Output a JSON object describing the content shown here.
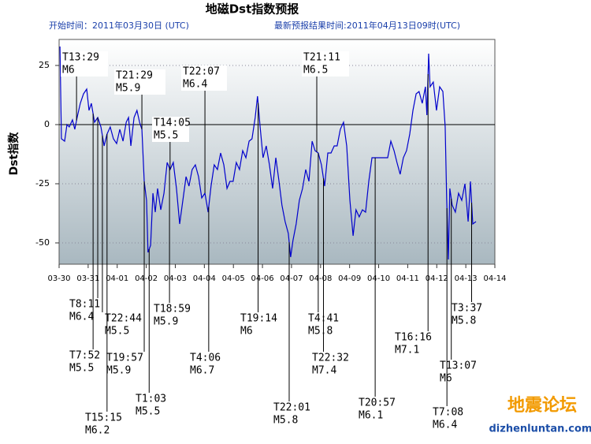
{
  "chart_data": {
    "type": "line",
    "title": "地磁Dst指数预报",
    "subtitle_left": "开始时间：2011年03月30日 (UTC)",
    "subtitle_right": "最新预报结果时间:2011年04月13日09时(UTC)",
    "y_label": "Dst指数",
    "watermark": "地震论坛",
    "watermark_url": "dizhenluntan.com",
    "color": "#0000cc",
    "grid": true,
    "xlim": [
      0,
      15
    ],
    "ylim": [
      -59,
      36
    ],
    "yticks": [
      -50,
      -25,
      0,
      25
    ],
    "xticks": [
      {
        "value": 0,
        "label": "03-30"
      },
      {
        "value": 1,
        "label": "03-31"
      },
      {
        "value": 2,
        "label": "04-01"
      },
      {
        "value": 3,
        "label": "04-02"
      },
      {
        "value": 4,
        "label": "04-03"
      },
      {
        "value": 5,
        "label": "04-04"
      },
      {
        "value": 6,
        "label": "04-05"
      },
      {
        "value": 7,
        "label": "04-06"
      },
      {
        "value": 8,
        "label": "04-07"
      },
      {
        "value": 9,
        "label": "04-08"
      },
      {
        "value": 10,
        "label": "04-09"
      },
      {
        "value": 11,
        "label": "04-10"
      },
      {
        "value": 12,
        "label": "04-11"
      },
      {
        "value": 13,
        "label": "04-12"
      },
      {
        "value": 14,
        "label": "04-13"
      },
      {
        "value": 15,
        "label": "04-14"
      }
    ],
    "x": [
      0.03,
      0.08,
      0.19,
      0.27,
      0.35,
      0.46,
      0.54,
      0.62,
      0.73,
      0.84,
      0.95,
      1.03,
      1.11,
      1.22,
      1.33,
      1.44,
      1.55,
      1.65,
      1.76,
      1.87,
      1.98,
      2.09,
      2.2,
      2.31,
      2.39,
      2.47,
      2.58,
      2.68,
      2.77,
      2.85,
      2.93,
      3.01,
      3.06,
      3.15,
      3.23,
      3.31,
      3.39,
      3.5,
      3.61,
      3.72,
      3.82,
      3.93,
      4.04,
      4.15,
      4.26,
      4.37,
      4.47,
      4.58,
      4.69,
      4.8,
      4.91,
      5.02,
      5.13,
      5.23,
      5.34,
      5.45,
      5.56,
      5.67,
      5.78,
      5.88,
      5.99,
      6.1,
      6.21,
      6.32,
      6.43,
      6.54,
      6.64,
      6.75,
      6.83,
      6.92,
      7.02,
      7.13,
      7.24,
      7.35,
      7.46,
      7.57,
      7.67,
      7.78,
      7.89,
      7.97,
      8.05,
      8.16,
      8.27,
      8.38,
      8.49,
      8.6,
      8.71,
      8.81,
      8.92,
      9.03,
      9.14,
      9.25,
      9.36,
      9.47,
      9.57,
      9.68,
      9.79,
      9.9,
      10.01,
      10.12,
      10.22,
      10.33,
      10.44,
      10.55,
      10.66,
      10.77,
      10.88,
      11.31,
      11.42,
      11.53,
      11.63,
      11.74,
      11.85,
      11.96,
      12.07,
      12.18,
      12.29,
      12.39,
      12.5,
      12.61,
      12.66,
      12.72,
      12.77,
      12.88,
      12.99,
      13.1,
      13.21,
      13.29,
      13.34,
      13.4,
      13.45,
      13.53,
      13.64,
      13.75,
      13.86,
      13.97,
      14.08,
      14.16,
      14.24,
      14.35
    ],
    "values": [
      33,
      -6,
      -7,
      0,
      -1,
      2,
      -2,
      3,
      9,
      13,
      15,
      6,
      9,
      1,
      3,
      -1,
      -9,
      -4,
      -1,
      -6,
      -8,
      -2,
      -7,
      1,
      3,
      -9,
      3,
      6,
      1,
      -2,
      -24,
      -32,
      -54,
      -51,
      -29,
      -37,
      -27,
      -36,
      -29,
      -16,
      -19,
      -16,
      -27,
      -42,
      -32,
      -22,
      -26,
      -19,
      -17,
      -22,
      -31,
      -29,
      -37,
      -26,
      -17,
      -19,
      -12,
      -17,
      -27,
      -24,
      -24,
      -16,
      -19,
      -11,
      -14,
      -7,
      -6,
      3,
      12,
      -1,
      -14,
      -9,
      -17,
      -27,
      -14,
      -24,
      -34,
      -41,
      -46,
      -56,
      -49,
      -42,
      -32,
      -27,
      -19,
      -24,
      -7,
      -11,
      -12,
      -17,
      -26,
      -12,
      -12,
      -9,
      -9,
      -2,
      1,
      -9,
      -32,
      -47,
      -36,
      -39,
      -36,
      -37,
      -24,
      -14,
      -14,
      -14,
      -7,
      -11,
      -16,
      -21,
      -14,
      -11,
      -4,
      6,
      13,
      14,
      9,
      16,
      4,
      30,
      16,
      18,
      6,
      16,
      14,
      -1,
      -31,
      -57,
      -27,
      -34,
      -37,
      -29,
      -32,
      -25,
      -41,
      -24,
      -42,
      -41
    ],
    "annotations": [
      {
        "text": [
          "T13:29",
          "M6"
        ],
        "x": 0.6
      },
      {
        "text": [
          "T21:29",
          "M5.9"
        ],
        "x": 2.85
      },
      {
        "text": [
          "T22:07",
          "M6.4"
        ],
        "x": 5.02
      },
      {
        "text": [
          "T14:05",
          "M5.5"
        ],
        "x": 3.82
      },
      {
        "text": [
          "T21:11",
          "M6.5"
        ],
        "x": 8.87
      },
      {
        "text": [
          "T8:11",
          "M6.4"
        ],
        "x": 1.33
      },
      {
        "text": [
          "T7:52",
          "M5.5"
        ],
        "x": 1.17
      },
      {
        "text": [
          "T15:15",
          "M6.2"
        ],
        "x": 1.65
      },
      {
        "text": [
          "T22:44",
          "M5.5"
        ],
        "x": 1.49
      },
      {
        "text": [
          "T19:57",
          "M5.9"
        ],
        "x": 2.93
      },
      {
        "text": [
          "T1:03",
          "M5.5"
        ],
        "x": 3.1
      },
      {
        "text": [
          "T18:59",
          "M5.9"
        ],
        "x": 3.8
      },
      {
        "text": [
          "T4:06",
          "M6.7"
        ],
        "x": 5.15
      },
      {
        "text": [
          "T19:14",
          "M6"
        ],
        "x": 6.85
      },
      {
        "text": [
          "T22:01",
          "M5.8"
        ],
        "x": 7.92
      },
      {
        "text": [
          "T4:41",
          "M5.8"
        ],
        "x": 8.92
      },
      {
        "text": [
          "T22:32",
          "M7.4"
        ],
        "x": 9.1
      },
      {
        "text": [
          "T20:57",
          "M6.1"
        ],
        "x": 10.88
      },
      {
        "text": [
          "T16:16",
          "M7.1"
        ],
        "x": 12.7
      },
      {
        "text": [
          "T13:07",
          "M6"
        ],
        "x": 13.5
      },
      {
        "text": [
          "T7:08",
          "M6.4"
        ],
        "x": 13.35
      },
      {
        "text": [
          "T3:37",
          "M5.8"
        ],
        "x": 14.2
      }
    ]
  }
}
